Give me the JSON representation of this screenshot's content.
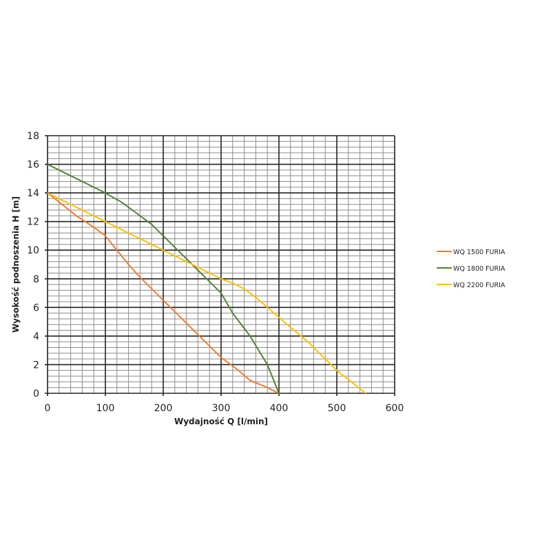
{
  "chart_data": {
    "type": "line",
    "title": "",
    "xlabel": "Wydajność Q [l/min]",
    "ylabel": "Wysokość podnoszenia H [m]",
    "xlim": [
      0,
      600
    ],
    "ylim": [
      0,
      18
    ],
    "xticks": [
      0,
      100,
      200,
      300,
      400,
      500,
      600
    ],
    "yticks": [
      0,
      2,
      4,
      6,
      8,
      10,
      12,
      14,
      16,
      18
    ],
    "grid": {
      "major": true,
      "minor": true,
      "x_minor_step": 20,
      "y_minor_step": 0.4
    },
    "legend_position": "right",
    "series": [
      {
        "name": "WQ 1500 FURIA",
        "color": "#ed7d31",
        "x": [
          0,
          50,
          80,
          100,
          120,
          140,
          160,
          200,
          250,
          300,
          330,
          350,
          380,
          400
        ],
        "y": [
          14,
          12.4,
          11.6,
          11,
          10,
          9,
          8.1,
          6.5,
          4.5,
          2.5,
          1.6,
          0.9,
          0.4,
          0
        ]
      },
      {
        "name": "WQ 1800 FURIA",
        "color": "#548235",
        "x": [
          0,
          50,
          100,
          130,
          150,
          180,
          200,
          250,
          300,
          320,
          350,
          380,
          400
        ],
        "y": [
          16,
          15,
          14,
          13.3,
          12.7,
          11.8,
          11,
          9,
          7,
          5.6,
          4,
          2,
          0
        ]
      },
      {
        "name": "WQ 2200 FURIA",
        "color": "#ffc000",
        "x": [
          0,
          100,
          200,
          300,
          320,
          340,
          360,
          400,
          450,
          500,
          550
        ],
        "y": [
          14,
          12,
          10,
          8,
          7.7,
          7.3,
          6.7,
          5.3,
          3.6,
          1.6,
          0
        ]
      }
    ]
  }
}
